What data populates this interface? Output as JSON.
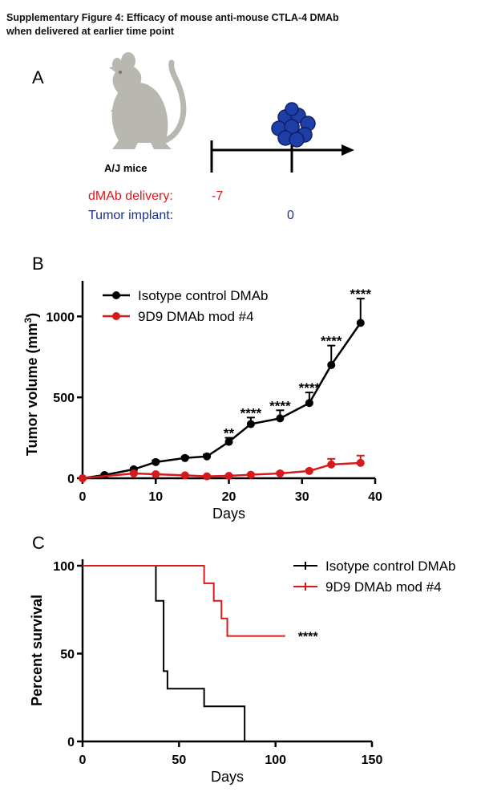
{
  "figure": {
    "title_line1": "Supplementary Figure 4: Efficacy of mouse anti-mouse CTLA-4 DMAb",
    "title_line2": "when delivered at earlier time point"
  },
  "panel_a": {
    "label": "A",
    "mouse_label": "A/J mice",
    "delivery_label": "dMAb delivery:",
    "delivery_day": "-7",
    "implant_label": "Tumor implant:",
    "implant_day": "0",
    "colors": {
      "delivery": "#d7191c",
      "implant": "#1a2f8f",
      "mouse": "#b8b8b0",
      "tumor": "#1f3fa8"
    }
  },
  "chart_data": [
    {
      "panel": "B",
      "type": "line",
      "xlabel": "Days",
      "ylabel": "Tumor volume (mm",
      "ylabel_sup": "3",
      "ylabel_close": ")",
      "xlim": [
        0,
        40
      ],
      "ylim": [
        0,
        1200
      ],
      "xticks": [
        0,
        10,
        20,
        30,
        40
      ],
      "yticks": [
        0,
        500,
        1000
      ],
      "legend_position": "top-left",
      "series": [
        {
          "name": "Isotype control DMAb",
          "color": "#000000",
          "x": [
            0,
            3,
            7,
            10,
            14,
            17,
            20,
            23,
            27,
            31,
            34,
            38
          ],
          "y": [
            0,
            20,
            55,
            100,
            125,
            135,
            225,
            335,
            370,
            465,
            700,
            960
          ],
          "err": [
            0,
            5,
            8,
            10,
            10,
            12,
            25,
            40,
            50,
            65,
            120,
            150
          ]
        },
        {
          "name": "9D9 DMAb mod #4",
          "color": "#d7191c",
          "x": [
            0,
            7,
            10,
            14,
            17,
            20,
            23,
            27,
            31,
            34,
            38
          ],
          "y": [
            0,
            30,
            25,
            18,
            12,
            15,
            22,
            30,
            45,
            85,
            95
          ],
          "err": [
            0,
            5,
            5,
            4,
            4,
            5,
            6,
            8,
            10,
            35,
            45
          ]
        }
      ],
      "annotations": [
        {
          "x": 20,
          "y": 250,
          "text": "**"
        },
        {
          "x": 23,
          "y": 375,
          "text": "****"
        },
        {
          "x": 27,
          "y": 420,
          "text": "****"
        },
        {
          "x": 31,
          "y": 530,
          "text": "****"
        },
        {
          "x": 34,
          "y": 820,
          "text": "****"
        },
        {
          "x": 38,
          "y": 1110,
          "text": "****"
        }
      ]
    },
    {
      "panel": "C",
      "type": "line",
      "xlabel": "Days",
      "ylabel": "Percent survival",
      "xlim": [
        0,
        150
      ],
      "ylim": [
        0,
        100
      ],
      "xticks": [
        0,
        50,
        100,
        150
      ],
      "yticks": [
        0,
        50,
        100
      ],
      "legend_position": "top-right",
      "series": [
        {
          "name": "Isotype control DMAb",
          "color": "#000000",
          "x": [
            0,
            38,
            38,
            42,
            42,
            44,
            44,
            63,
            63,
            84,
            84
          ],
          "y": [
            100,
            100,
            80,
            80,
            40,
            40,
            30,
            30,
            20,
            20,
            0
          ]
        },
        {
          "name": "9D9 DMAb mod #4",
          "color": "#d7191c",
          "x": [
            0,
            63,
            63,
            68,
            68,
            72,
            72,
            75,
            75,
            78,
            78,
            105
          ],
          "y": [
            100,
            100,
            90,
            90,
            80,
            80,
            70,
            70,
            60,
            60,
            60,
            60
          ]
        }
      ],
      "annotations": [
        {
          "x": 105,
          "y": 60,
          "text": "****"
        }
      ]
    }
  ]
}
